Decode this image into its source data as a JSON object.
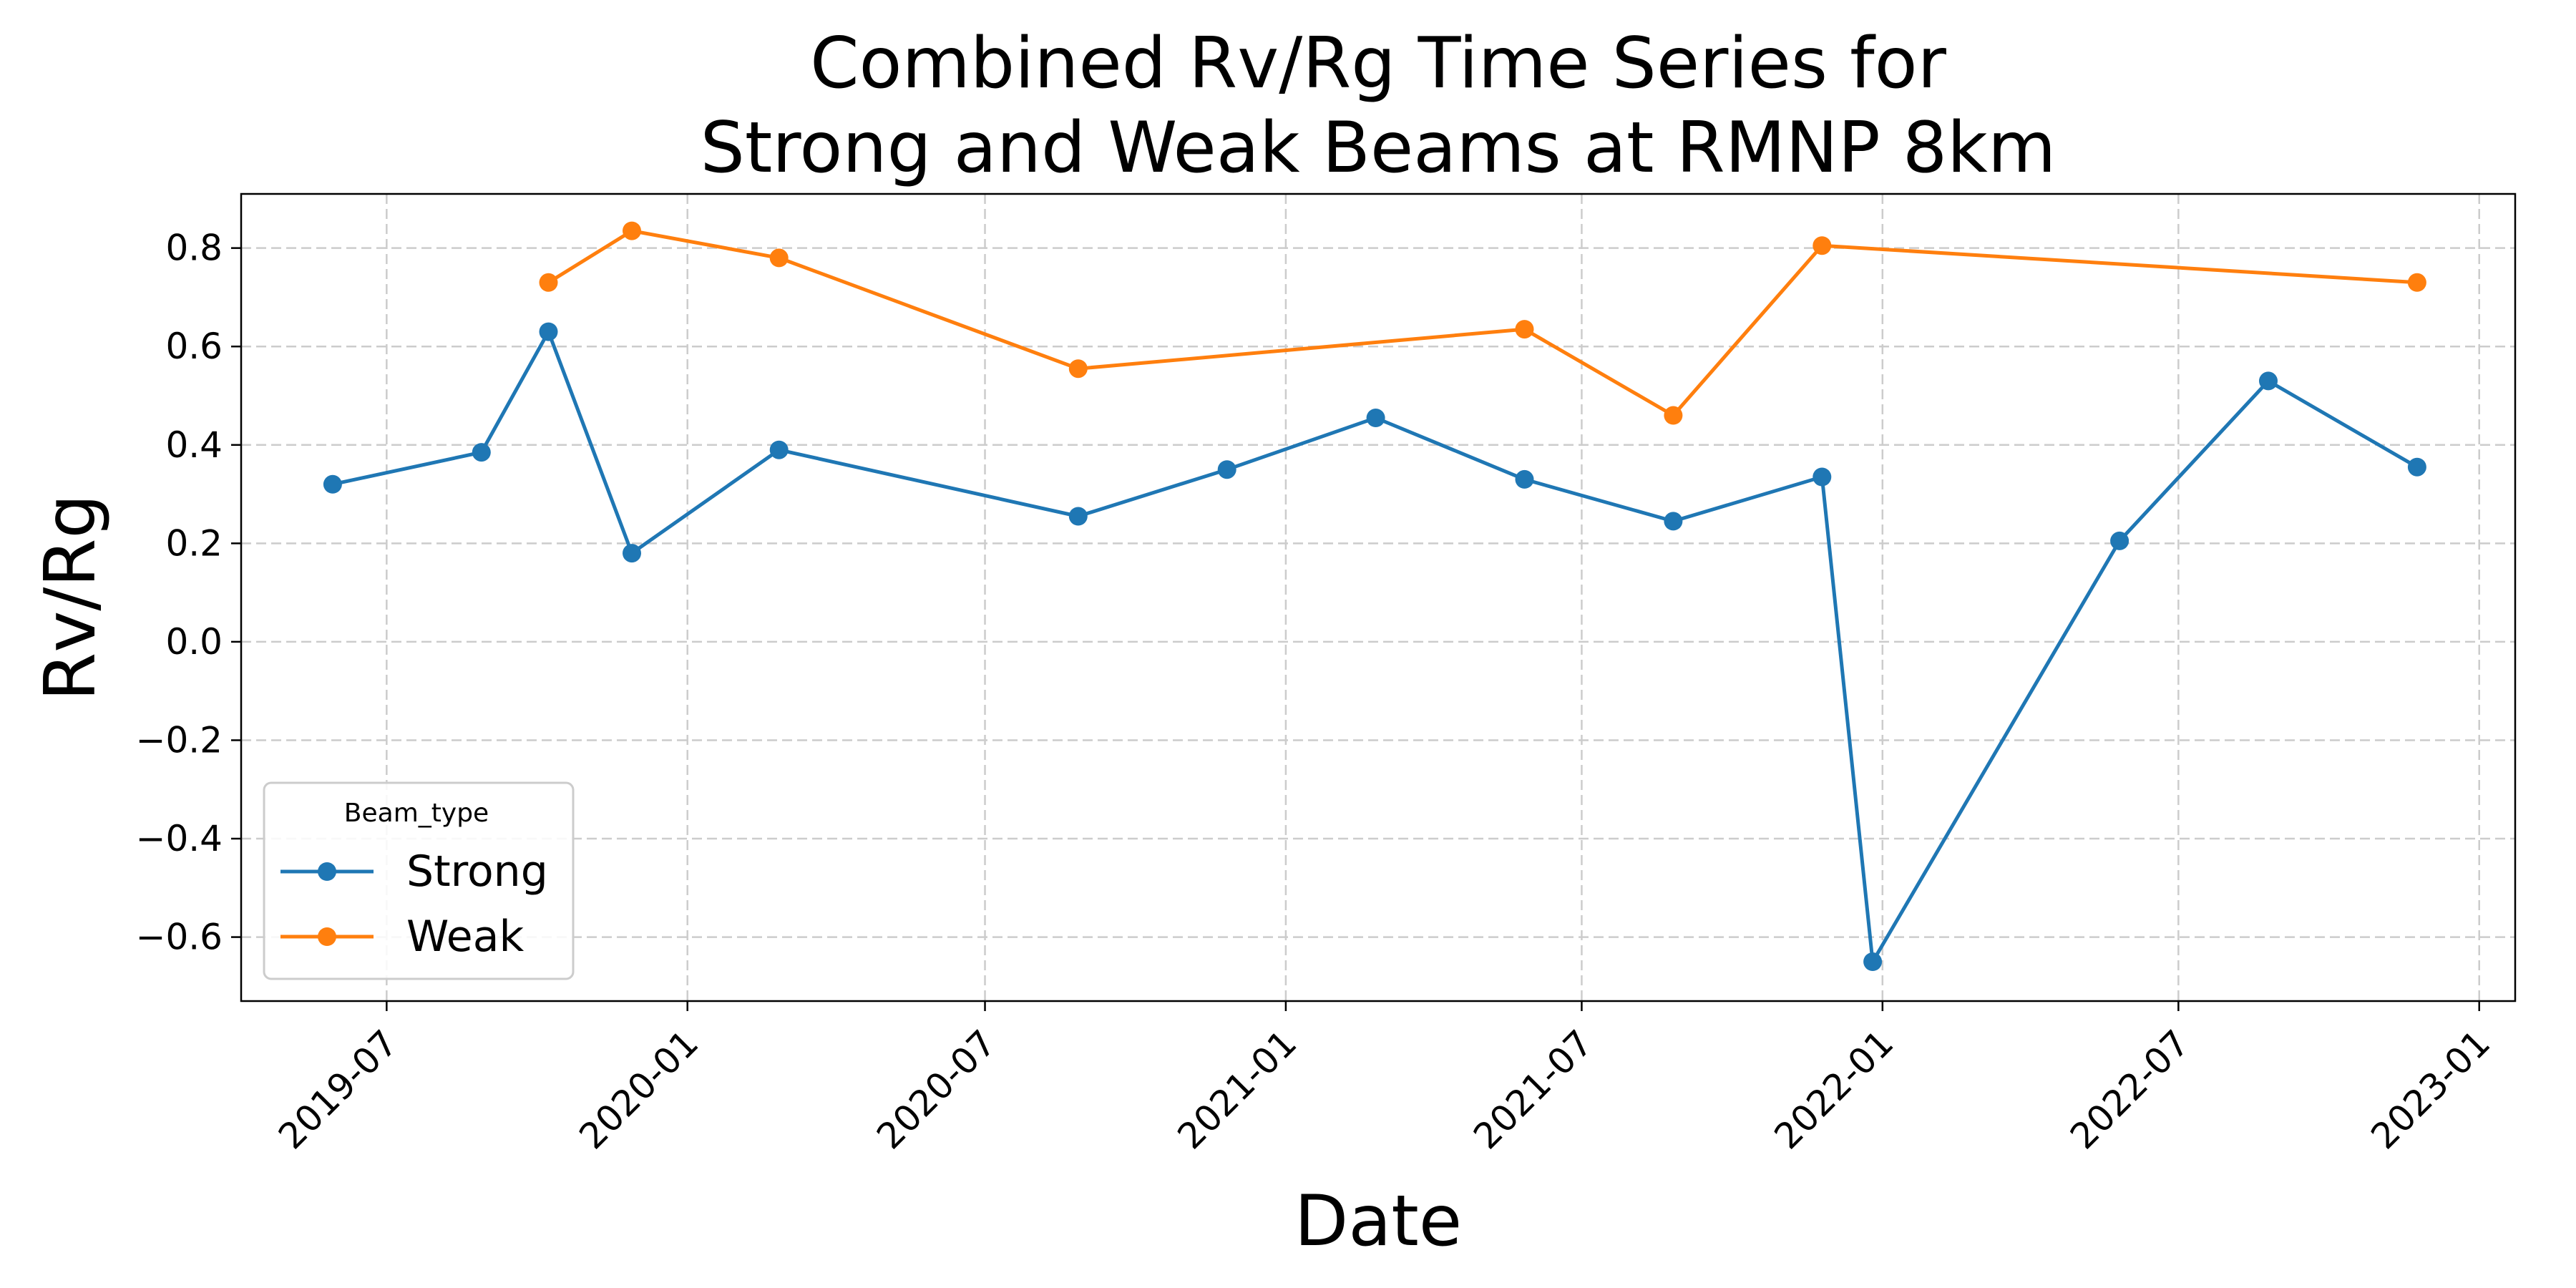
{
  "chart_data": {
    "type": "line",
    "title_lines": [
      "Combined Rv/Rg Time Series for",
      "Strong and Weak Beams at RMNP 8km"
    ],
    "xlabel": "Date",
    "ylabel": "Rv/Rg",
    "x_ticks": [
      "2019-07",
      "2020-01",
      "2020-07",
      "2021-01",
      "2021-07",
      "2022-01",
      "2022-07",
      "2023-01"
    ],
    "y_ticks": [
      0.8,
      0.6,
      0.4,
      0.2,
      0.0,
      -0.2,
      -0.4,
      -0.6
    ],
    "y_tick_labels": [
      "0.8",
      "0.6",
      "0.4",
      "0.2",
      "0.0",
      "−0.2",
      "−0.4",
      "−0.6"
    ],
    "xlim": [
      "2019-04-03",
      "2023-01-23"
    ],
    "ylim": [
      -0.73,
      0.91
    ],
    "grid": true,
    "legend": {
      "title": "Beam_type",
      "position": "lower-left"
    },
    "series": [
      {
        "name": "Strong",
        "color": "#1f77b4",
        "x": [
          "2019-05-29",
          "2019-08-28",
          "2019-10-08",
          "2019-11-28",
          "2020-02-26",
          "2020-08-27",
          "2020-11-26",
          "2021-02-25",
          "2021-05-27",
          "2021-08-26",
          "2021-11-25",
          "2021-12-26",
          "2022-05-26",
          "2022-08-25",
          "2022-11-24"
        ],
        "y": [
          0.32,
          0.385,
          0.63,
          0.18,
          0.39,
          0.255,
          0.35,
          0.455,
          0.33,
          0.245,
          0.335,
          -0.65,
          0.205,
          0.53,
          0.355
        ]
      },
      {
        "name": "Weak",
        "color": "#ff7f0e",
        "x": [
          "2019-10-08",
          "2019-11-28",
          "2020-02-26",
          "2020-08-27",
          "2021-05-27",
          "2021-08-26",
          "2021-11-25",
          "2022-11-24"
        ],
        "y": [
          0.73,
          0.835,
          0.78,
          0.555,
          0.635,
          0.46,
          0.805,
          0.73
        ]
      }
    ]
  }
}
